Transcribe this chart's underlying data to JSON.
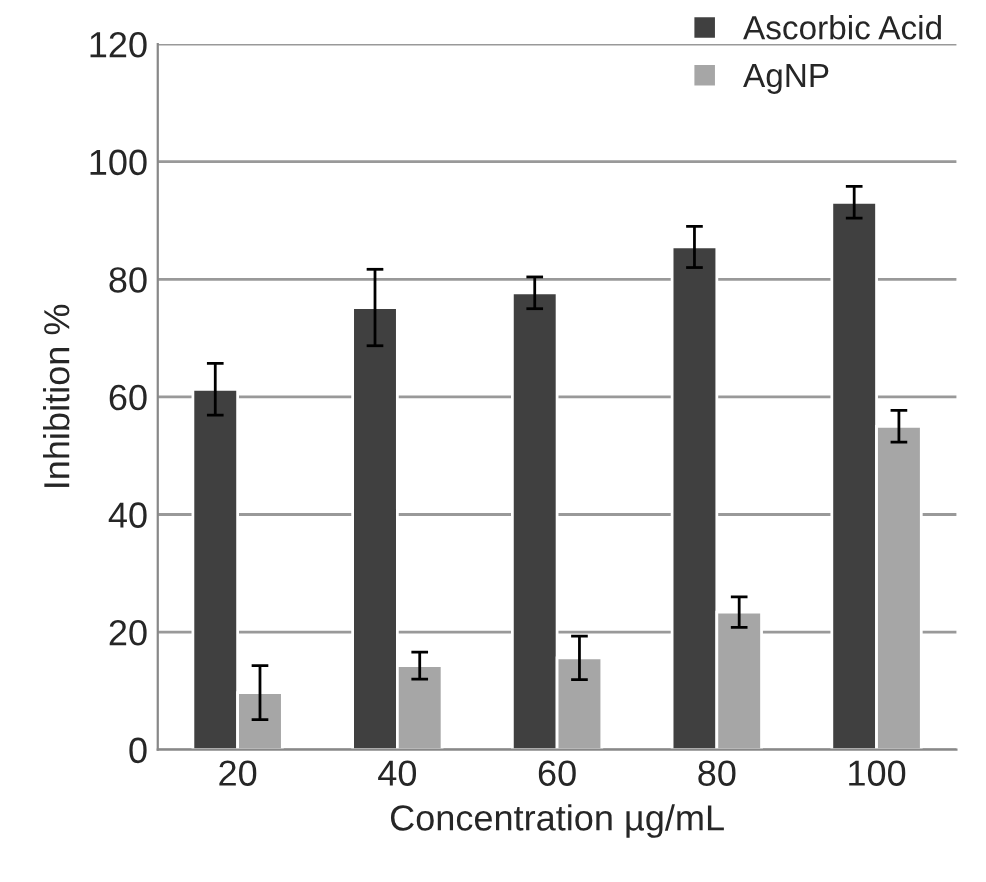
{
  "chart_data": {
    "type": "bar",
    "xlabel": "Concentration µg/mL",
    "ylabel": "Inhibition %",
    "categories": [
      "20",
      "40",
      "60",
      "80",
      "100"
    ],
    "series": [
      {
        "name": "Ascorbic Acid",
        "color": "#404040",
        "values": [
          61.3,
          75.2,
          77.7,
          85.5,
          93.1
        ],
        "errors": [
          4.4,
          6.5,
          2.7,
          3.5,
          2.7
        ]
      },
      {
        "name": "AgNP",
        "color": "#a6a6a6",
        "values": [
          9.7,
          14.3,
          15.6,
          23.4,
          55.0
        ],
        "errors": [
          4.6,
          2.3,
          3.7,
          2.6,
          2.7
        ]
      }
    ],
    "ylim": [
      0,
      120
    ],
    "yticks": [
      0,
      20,
      40,
      60,
      80,
      100,
      120
    ],
    "grid": "y",
    "legend": "top right"
  }
}
